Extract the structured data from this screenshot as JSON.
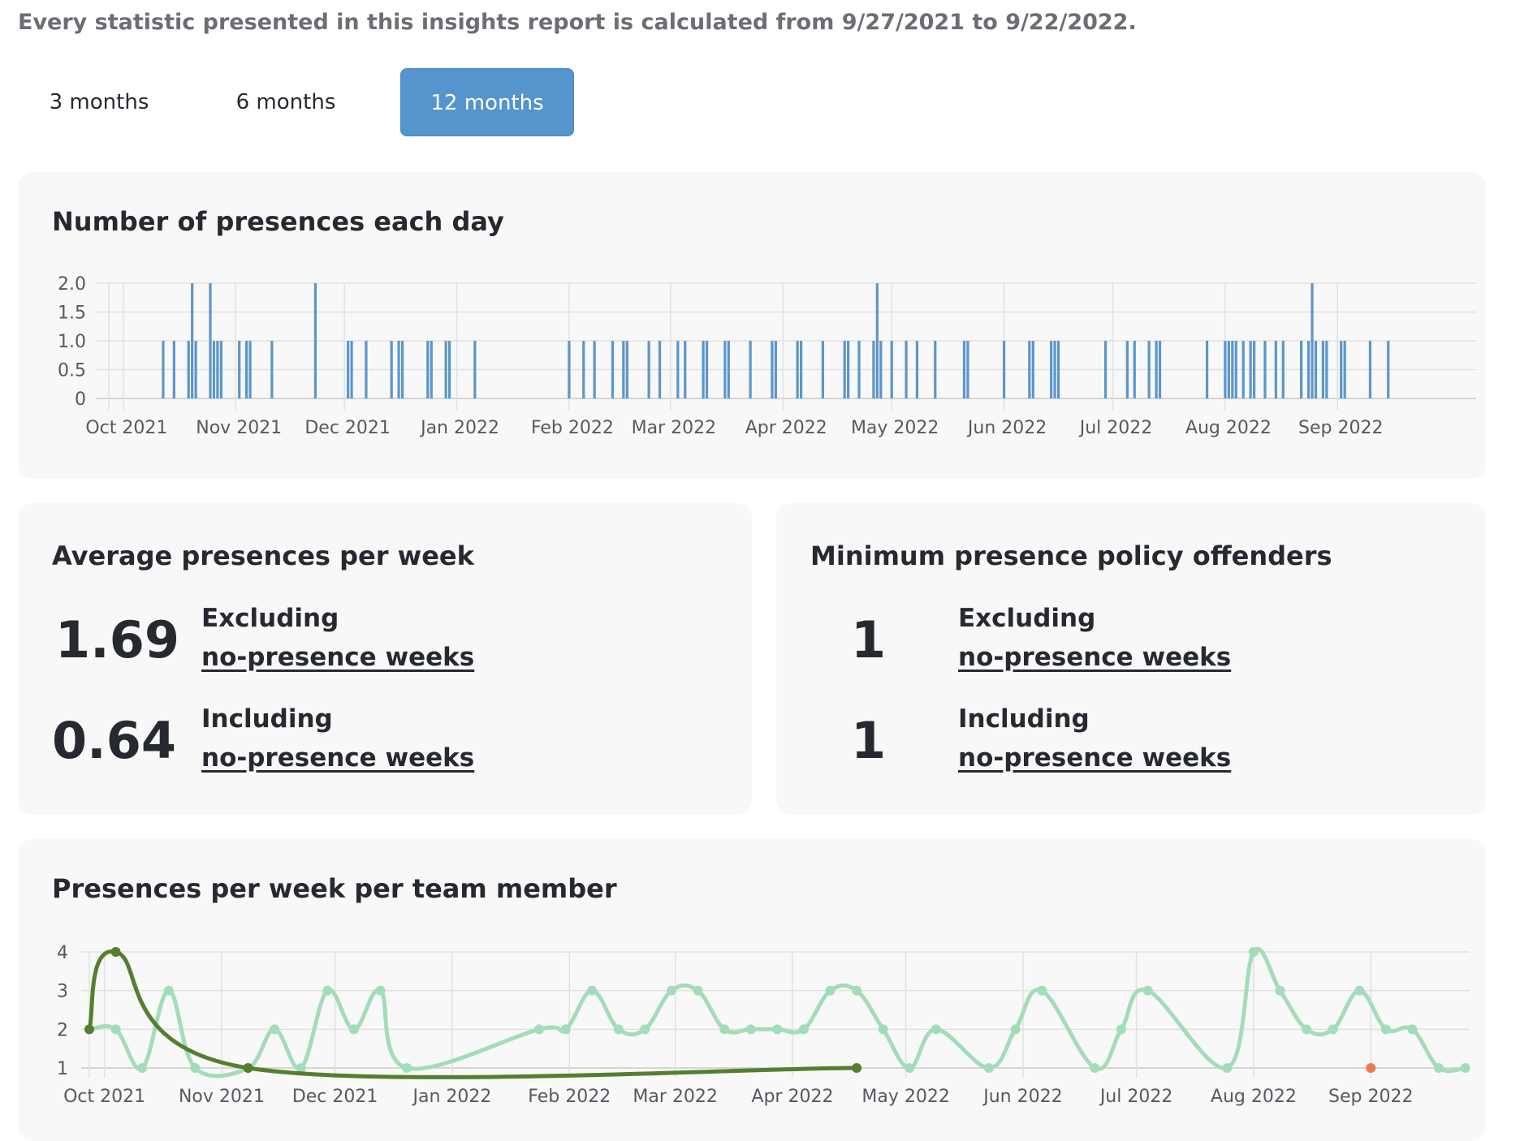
{
  "intro_text": "Every statistic presented in this insights report is calculated from 9/27/2021 to 9/22/2022.",
  "range_tabs": [
    {
      "label": "3 months",
      "active": false
    },
    {
      "label": "6 months",
      "active": false
    },
    {
      "label": "12 months",
      "active": true
    }
  ],
  "daily_card": {
    "title": "Number of presences each day"
  },
  "average_card": {
    "title": "Average presences per week",
    "rows": [
      {
        "value": "1.69",
        "label": "Excluding",
        "link": "no-presence weeks"
      },
      {
        "value": "0.64",
        "label": "Including",
        "link": "no-presence weeks"
      }
    ]
  },
  "offenders_card": {
    "title": "Minimum presence policy offenders",
    "rows": [
      {
        "value": "1",
        "label": "Excluding",
        "link": "no-presence weeks"
      },
      {
        "value": "1",
        "label": "Including",
        "link": "no-presence weeks"
      }
    ]
  },
  "weekly_card": {
    "title": "Presences per week per team member"
  },
  "colors": {
    "accent": "#5594cc",
    "bar": "#5b96cb",
    "series_light": "#a3dcb9",
    "series_dark": "#567e31",
    "series_orange": "#ef7b4c",
    "card_bg": "#f8f8f8"
  },
  "chart_data": [
    {
      "type": "bar",
      "x_axis": "date",
      "x_range": [
        "2021-09-27",
        "2022-09-22"
      ],
      "ylim": [
        0,
        2
      ],
      "y_ticks": [
        "0",
        "0.5",
        "1.0",
        "1.5",
        "2.0"
      ],
      "x_tick_labels": [
        {
          "date": "2021-10-01",
          "label": "Oct 2021"
        },
        {
          "date": "2021-11-01",
          "label": "Nov 2021"
        },
        {
          "date": "2021-12-01",
          "label": "Dec 2021"
        },
        {
          "date": "2022-01-01",
          "label": "Jan 2022"
        },
        {
          "date": "2022-02-01",
          "label": "Feb 2022"
        },
        {
          "date": "2022-03-01",
          "label": "Mar 2022"
        },
        {
          "date": "2022-04-01",
          "label": "Apr 2022"
        },
        {
          "date": "2022-05-01",
          "label": "May 2022"
        },
        {
          "date": "2022-06-01",
          "label": "Jun 2022"
        },
        {
          "date": "2022-07-01",
          "label": "Jul 2022"
        },
        {
          "date": "2022-08-01",
          "label": "Aug 2022"
        },
        {
          "date": "2022-09-01",
          "label": "Sep 2022"
        }
      ],
      "grid": true,
      "values": [
        {
          "date": "2021-10-12",
          "value": 1
        },
        {
          "date": "2021-10-15",
          "value": 1
        },
        {
          "date": "2021-10-19",
          "value": 1
        },
        {
          "date": "2021-10-20",
          "value": 2
        },
        {
          "date": "2021-10-21",
          "value": 1
        },
        {
          "date": "2021-10-25",
          "value": 2
        },
        {
          "date": "2021-10-26",
          "value": 1
        },
        {
          "date": "2021-10-27",
          "value": 1
        },
        {
          "date": "2021-10-28",
          "value": 1
        },
        {
          "date": "2021-11-02",
          "value": 1
        },
        {
          "date": "2021-11-04",
          "value": 1
        },
        {
          "date": "2021-11-05",
          "value": 1
        },
        {
          "date": "2021-11-11",
          "value": 1
        },
        {
          "date": "2021-11-23",
          "value": 2
        },
        {
          "date": "2021-12-02",
          "value": 1
        },
        {
          "date": "2021-12-03",
          "value": 1
        },
        {
          "date": "2021-12-07",
          "value": 1
        },
        {
          "date": "2021-12-14",
          "value": 1
        },
        {
          "date": "2021-12-16",
          "value": 1
        },
        {
          "date": "2021-12-17",
          "value": 1
        },
        {
          "date": "2021-12-24",
          "value": 1
        },
        {
          "date": "2021-12-25",
          "value": 1
        },
        {
          "date": "2021-12-29",
          "value": 1
        },
        {
          "date": "2021-12-30",
          "value": 1
        },
        {
          "date": "2022-01-06",
          "value": 1
        },
        {
          "date": "2022-02-01",
          "value": 1
        },
        {
          "date": "2022-02-05",
          "value": 1
        },
        {
          "date": "2022-02-08",
          "value": 1
        },
        {
          "date": "2022-02-13",
          "value": 1
        },
        {
          "date": "2022-02-16",
          "value": 1
        },
        {
          "date": "2022-02-17",
          "value": 1
        },
        {
          "date": "2022-02-23",
          "value": 1
        },
        {
          "date": "2022-02-26",
          "value": 1
        },
        {
          "date": "2022-03-03",
          "value": 1
        },
        {
          "date": "2022-03-05",
          "value": 1
        },
        {
          "date": "2022-03-10",
          "value": 1
        },
        {
          "date": "2022-03-11",
          "value": 1
        },
        {
          "date": "2022-03-16",
          "value": 1
        },
        {
          "date": "2022-03-17",
          "value": 1
        },
        {
          "date": "2022-03-23",
          "value": 1
        },
        {
          "date": "2022-03-29",
          "value": 1
        },
        {
          "date": "2022-03-30",
          "value": 1
        },
        {
          "date": "2022-04-05",
          "value": 1
        },
        {
          "date": "2022-04-06",
          "value": 1
        },
        {
          "date": "2022-04-12",
          "value": 1
        },
        {
          "date": "2022-04-18",
          "value": 1
        },
        {
          "date": "2022-04-19",
          "value": 1
        },
        {
          "date": "2022-04-22",
          "value": 1
        },
        {
          "date": "2022-04-26",
          "value": 1
        },
        {
          "date": "2022-04-27",
          "value": 2
        },
        {
          "date": "2022-04-28",
          "value": 1
        },
        {
          "date": "2022-05-01",
          "value": 1
        },
        {
          "date": "2022-05-05",
          "value": 1
        },
        {
          "date": "2022-05-08",
          "value": 1
        },
        {
          "date": "2022-05-13",
          "value": 1
        },
        {
          "date": "2022-05-21",
          "value": 1
        },
        {
          "date": "2022-05-22",
          "value": 1
        },
        {
          "date": "2022-06-01",
          "value": 1
        },
        {
          "date": "2022-06-08",
          "value": 1
        },
        {
          "date": "2022-06-09",
          "value": 1
        },
        {
          "date": "2022-06-14",
          "value": 1
        },
        {
          "date": "2022-06-15",
          "value": 1
        },
        {
          "date": "2022-06-16",
          "value": 1
        },
        {
          "date": "2022-06-29",
          "value": 1
        },
        {
          "date": "2022-07-05",
          "value": 1
        },
        {
          "date": "2022-07-07",
          "value": 1
        },
        {
          "date": "2022-07-11",
          "value": 1
        },
        {
          "date": "2022-07-13",
          "value": 1
        },
        {
          "date": "2022-07-14",
          "value": 1
        },
        {
          "date": "2022-07-27",
          "value": 1
        },
        {
          "date": "2022-08-01",
          "value": 1
        },
        {
          "date": "2022-08-02",
          "value": 1
        },
        {
          "date": "2022-08-03",
          "value": 1
        },
        {
          "date": "2022-08-04",
          "value": 1
        },
        {
          "date": "2022-08-06",
          "value": 1
        },
        {
          "date": "2022-08-08",
          "value": 1
        },
        {
          "date": "2022-08-09",
          "value": 1
        },
        {
          "date": "2022-08-12",
          "value": 1
        },
        {
          "date": "2022-08-15",
          "value": 1
        },
        {
          "date": "2022-08-17",
          "value": 1
        },
        {
          "date": "2022-08-22",
          "value": 1
        },
        {
          "date": "2022-08-24",
          "value": 1
        },
        {
          "date": "2022-08-25",
          "value": 2
        },
        {
          "date": "2022-08-26",
          "value": 1
        },
        {
          "date": "2022-08-28",
          "value": 1
        },
        {
          "date": "2022-08-29",
          "value": 1
        },
        {
          "date": "2022-09-02",
          "value": 1
        },
        {
          "date": "2022-09-03",
          "value": 1
        },
        {
          "date": "2022-09-10",
          "value": 1
        },
        {
          "date": "2022-09-15",
          "value": 1
        }
      ]
    },
    {
      "type": "line",
      "x_axis": "date",
      "x_range": [
        "2021-09-27",
        "2022-09-22"
      ],
      "ylim": [
        1,
        4
      ],
      "y_ticks": [
        "1",
        "2",
        "3",
        "4"
      ],
      "x_tick_labels": [
        {
          "date": "2021-10-01",
          "label": "Oct 2021"
        },
        {
          "date": "2021-11-01",
          "label": "Nov 2021"
        },
        {
          "date": "2021-12-01",
          "label": "Dec 2021"
        },
        {
          "date": "2022-01-01",
          "label": "Jan 2022"
        },
        {
          "date": "2022-02-01",
          "label": "Feb 2022"
        },
        {
          "date": "2022-03-01",
          "label": "Mar 2022"
        },
        {
          "date": "2022-04-01",
          "label": "Apr 2022"
        },
        {
          "date": "2022-05-01",
          "label": "May 2022"
        },
        {
          "date": "2022-06-01",
          "label": "Jun 2022"
        },
        {
          "date": "2022-07-01",
          "label": "Jul 2022"
        },
        {
          "date": "2022-08-01",
          "label": "Aug 2022"
        },
        {
          "date": "2022-09-01",
          "label": "Sep 2022"
        }
      ],
      "grid": true,
      "series": [
        {
          "color": "#a3dcb9",
          "points": [
            {
              "date": "2021-09-27",
              "value": 2
            },
            {
              "date": "2021-10-04",
              "value": 2
            },
            {
              "date": "2021-10-11",
              "value": 1
            },
            {
              "date": "2021-10-18",
              "value": 3
            },
            {
              "date": "2021-10-25",
              "value": 1
            },
            {
              "date": "2021-11-08",
              "value": 1
            },
            {
              "date": "2021-11-15",
              "value": 2
            },
            {
              "date": "2021-11-22",
              "value": 1
            },
            {
              "date": "2021-11-29",
              "value": 3
            },
            {
              "date": "2021-12-06",
              "value": 2
            },
            {
              "date": "2021-12-13",
              "value": 3
            },
            {
              "date": "2021-12-20",
              "value": 1
            },
            {
              "date": "2022-01-24",
              "value": 2
            },
            {
              "date": "2022-01-31",
              "value": 2
            },
            {
              "date": "2022-02-07",
              "value": 3
            },
            {
              "date": "2022-02-14",
              "value": 2
            },
            {
              "date": "2022-02-21",
              "value": 2
            },
            {
              "date": "2022-02-28",
              "value": 3
            },
            {
              "date": "2022-03-07",
              "value": 3
            },
            {
              "date": "2022-03-14",
              "value": 2
            },
            {
              "date": "2022-03-21",
              "value": 2
            },
            {
              "date": "2022-03-28",
              "value": 2
            },
            {
              "date": "2022-04-04",
              "value": 2
            },
            {
              "date": "2022-04-11",
              "value": 3
            },
            {
              "date": "2022-04-18",
              "value": 3
            },
            {
              "date": "2022-04-25",
              "value": 2
            },
            {
              "date": "2022-05-02",
              "value": 1
            },
            {
              "date": "2022-05-09",
              "value": 2
            },
            {
              "date": "2022-05-23",
              "value": 1
            },
            {
              "date": "2022-05-30",
              "value": 2
            },
            {
              "date": "2022-06-06",
              "value": 3
            },
            {
              "date": "2022-06-20",
              "value": 1
            },
            {
              "date": "2022-06-27",
              "value": 2
            },
            {
              "date": "2022-07-04",
              "value": 3
            },
            {
              "date": "2022-07-25",
              "value": 1
            },
            {
              "date": "2022-08-01",
              "value": 4
            },
            {
              "date": "2022-08-08",
              "value": 3
            },
            {
              "date": "2022-08-15",
              "value": 2
            },
            {
              "date": "2022-08-22",
              "value": 2
            },
            {
              "date": "2022-08-29",
              "value": 3
            },
            {
              "date": "2022-09-05",
              "value": 2
            },
            {
              "date": "2022-09-12",
              "value": 2
            },
            {
              "date": "2022-09-19",
              "value": 1
            },
            {
              "date": "2022-09-26",
              "value": 1
            }
          ]
        },
        {
          "color": "#567e31",
          "points": [
            {
              "date": "2021-09-27",
              "value": 2
            },
            {
              "date": "2021-10-04",
              "value": 4
            },
            {
              "date": "2021-11-08",
              "value": 1
            },
            {
              "date": "2022-04-18",
              "value": 1
            }
          ]
        },
        {
          "color": "#ef7b4c",
          "points": [
            {
              "date": "2022-09-01",
              "value": 1
            }
          ]
        }
      ]
    }
  ]
}
